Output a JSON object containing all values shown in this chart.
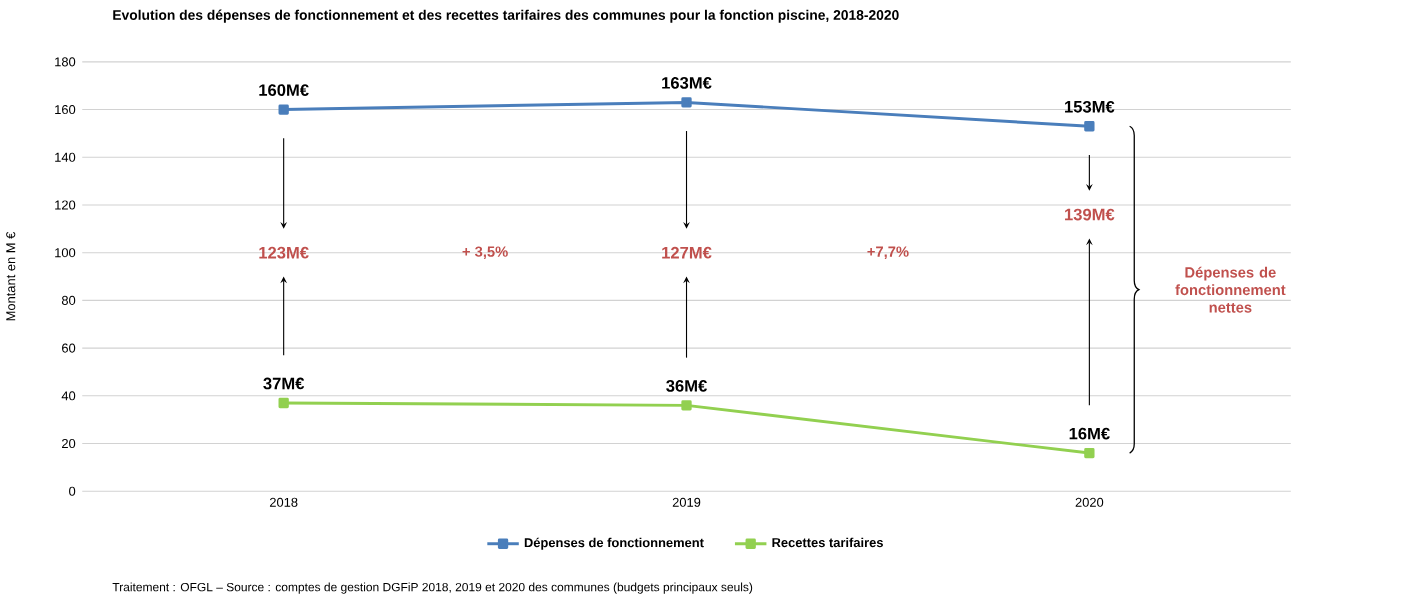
{
  "chart_data": {
    "type": "line",
    "title": "Evolution des dépenses de fonctionnement et des recettes tarifaires des communes pour la fonction piscine, 2018-2020",
    "ylabel": "Montant en M €",
    "categories": [
      "2018",
      "2019",
      "2020"
    ],
    "series": [
      {
        "name": "Dépenses de fonctionnement",
        "color": "#4a7ebb",
        "values": [
          160,
          163,
          153
        ],
        "value_labels": [
          "160M€",
          "163M€",
          "153M€"
        ]
      },
      {
        "name": "Recettes tarifaires",
        "color": "#92d050",
        "values": [
          37,
          36,
          16
        ],
        "value_labels": [
          "37M€",
          "36M€",
          "16M€"
        ]
      }
    ],
    "ylim": [
      0,
      180
    ],
    "yticks": [
      0,
      20,
      40,
      60,
      80,
      100,
      120,
      140,
      160,
      180
    ],
    "grid": "y",
    "legend": "bottom",
    "marker": "square",
    "line_style": "solid",
    "annotations": [
      "123M€",
      "+ 3,5%",
      "127M€",
      "+7,7%",
      "139M€",
      "Dépenses de fonctionnement nettes",
      "Traitement : OFGL – Source : comptes de gestion DGFiP 2018, 2019 et 2020 des communes (budgets principaux seuls)"
    ]
  }
}
